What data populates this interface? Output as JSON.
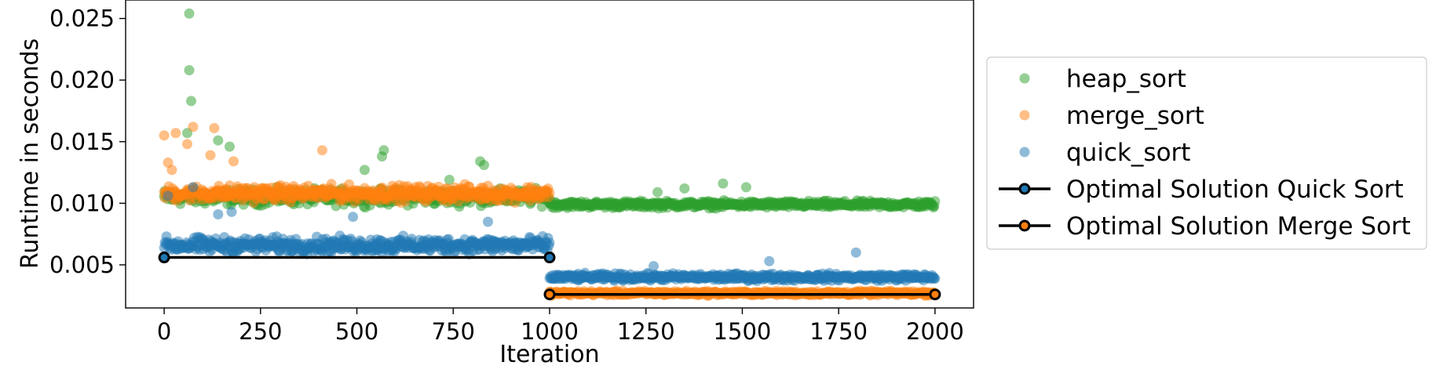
{
  "chart_data": {
    "type": "scatter",
    "xlabel": "Iteration",
    "ylabel": "Runtime in seconds",
    "xlim": [
      -100,
      2100
    ],
    "ylim": [
      0.0015,
      0.0265
    ],
    "xticks": [
      0,
      250,
      500,
      750,
      1000,
      1250,
      1500,
      1750,
      2000
    ],
    "xtick_labels": [
      "0",
      "250",
      "500",
      "750",
      "1000",
      "1250",
      "1500",
      "1750",
      "2000"
    ],
    "yticks": [
      0.005,
      0.01,
      0.015,
      0.02,
      0.025
    ],
    "ytick_labels": [
      "0.005",
      "0.010",
      "0.015",
      "0.020",
      "0.025"
    ],
    "grid": false,
    "legend_position": "right, outside plot",
    "series": [
      {
        "name": "heap_sort",
        "kind": "scatter",
        "color": "#2ca02c",
        "segments": [
          {
            "x_range": [
              0,
              1000
            ],
            "center": 0.0105,
            "spread": 0.0009
          },
          {
            "x_range": [
              1000,
              2000
            ],
            "center": 0.0099,
            "spread": 0.0004
          }
        ],
        "outliers": [
          [
            65,
            0.0254
          ],
          [
            65,
            0.0208
          ],
          [
            70,
            0.0183
          ],
          [
            60,
            0.0157
          ],
          [
            170,
            0.0146
          ],
          [
            140,
            0.0151
          ],
          [
            570,
            0.0143
          ],
          [
            565,
            0.0138
          ],
          [
            820,
            0.0134
          ],
          [
            830,
            0.0131
          ],
          [
            520,
            0.0127
          ],
          [
            740,
            0.0119
          ],
          [
            1450,
            0.0116
          ],
          [
            1350,
            0.0112
          ],
          [
            1510,
            0.0113
          ],
          [
            1280,
            0.0109
          ]
        ]
      },
      {
        "name": "merge_sort",
        "kind": "scatter",
        "color": "#ff7f0e",
        "segments": [
          {
            "x_range": [
              0,
              1000
            ],
            "center": 0.0108,
            "spread": 0.0009
          },
          {
            "x_range": [
              1000,
              2000
            ],
            "center": 0.0027,
            "spread": 0.00025
          }
        ],
        "outliers": [
          [
            0,
            0.0155
          ],
          [
            30,
            0.0157
          ],
          [
            75,
            0.0162
          ],
          [
            130,
            0.0161
          ],
          [
            410,
            0.0143
          ],
          [
            60,
            0.0148
          ],
          [
            120,
            0.0139
          ],
          [
            10,
            0.0133
          ],
          [
            180,
            0.0134
          ],
          [
            20,
            0.0127
          ]
        ]
      },
      {
        "name": "quick_sort",
        "kind": "scatter",
        "color": "#1f77b4",
        "segments": [
          {
            "x_range": [
              0,
              1000
            ],
            "center": 0.0066,
            "spread": 0.0009
          },
          {
            "x_range": [
              1000,
              2000
            ],
            "center": 0.004,
            "spread": 0.0004
          }
        ],
        "outliers": [
          [
            75,
            0.0113
          ],
          [
            10,
            0.0106
          ],
          [
            140,
            0.0091
          ],
          [
            175,
            0.0093
          ],
          [
            1795,
            0.006
          ],
          [
            1570,
            0.0053
          ],
          [
            1270,
            0.0049
          ],
          [
            920,
            0.0062
          ],
          [
            840,
            0.0085
          ],
          [
            490,
            0.0089
          ]
        ]
      },
      {
        "name": "Optimal Solution Quick Sort",
        "kind": "line",
        "color": "#1f77b4",
        "line_color": "#000000",
        "points": [
          [
            0,
            0.0056
          ],
          [
            1000,
            0.0056
          ]
        ]
      },
      {
        "name": "Optimal Solution Merge Sort",
        "kind": "line",
        "color": "#ff7f0e",
        "line_color": "#000000",
        "points": [
          [
            1000,
            0.0026
          ],
          [
            2000,
            0.0026
          ]
        ]
      }
    ]
  }
}
